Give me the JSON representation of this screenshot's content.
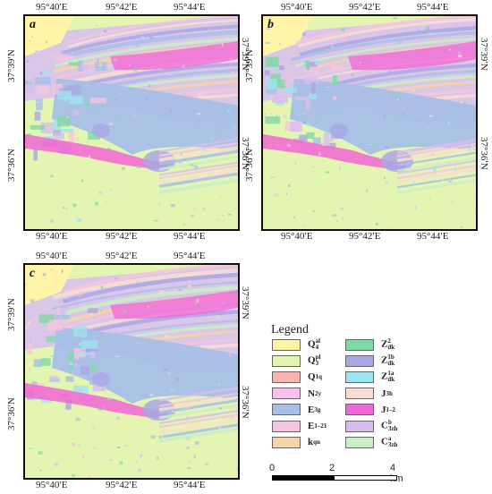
{
  "panels": [
    {
      "label": "a",
      "top_lons": [
        "95°40′E",
        "95°42′E",
        "95°44′E"
      ],
      "bottom_lons": [
        "95°40′E",
        "95°42′E",
        "95°44′E"
      ],
      "left_lats": [
        "37°39′N",
        "37°36′N"
      ],
      "right_lats": [
        "37°39′N",
        "37°36′N"
      ]
    },
    {
      "label": "b",
      "top_lons": [
        "95°40′E",
        "95°42′E",
        "95°44′E"
      ],
      "bottom_lons": [
        "95°40′E",
        "95°42′E",
        "95°44′E"
      ],
      "left_lats": [
        "37°39′N",
        "37°36′N"
      ],
      "right_lats": [
        "37°39′N",
        "37°36′N"
      ]
    },
    {
      "label": "c",
      "top_lons": [
        "95°40′E",
        "95°42′E",
        "95°44′E"
      ],
      "bottom_lons": [
        "95°40′E",
        "95°42′E",
        "95°44′E"
      ],
      "left_lats": [
        "37°39′N",
        "37°36′N"
      ],
      "right_lats": [
        "37°39′N",
        "37°36′N"
      ]
    }
  ],
  "legend": {
    "title": "Legend",
    "items": [
      {
        "base": "Q",
        "sup": "al",
        "sub": "4",
        "color": "#fff4a8"
      },
      {
        "base": "Q",
        "sup": "pl",
        "sub": "3",
        "color": "#e3f5b0"
      },
      {
        "base": "Q",
        "sup": "",
        "sub": "1q",
        "color": "#f7b5ad"
      },
      {
        "base": "N",
        "sup": "",
        "sub": "2y",
        "color": "#f9c0ee"
      },
      {
        "base": "E",
        "sup": "",
        "sub": "3g",
        "color": "#a7bfe6"
      },
      {
        "base": "E",
        "sup": "",
        "sub": "1–21",
        "color": "#f5c6df"
      },
      {
        "base": "k",
        "sup": "",
        "sub": "qn",
        "color": "#f8d3a6"
      },
      {
        "base": "Z",
        "sup": "2",
        "sub": "dk",
        "color": "#7fd9a4"
      },
      {
        "base": "Z",
        "sup": "1b",
        "sub": "dk",
        "color": "#a9a6e6"
      },
      {
        "base": "Z",
        "sup": "1a",
        "sub": "dk",
        "color": "#9ee3f0"
      },
      {
        "base": "J",
        "sup": "",
        "sub": "3h",
        "color": "#f8ded2"
      },
      {
        "base": "J",
        "sup": "",
        "sub": "1–2",
        "color": "#f266d6"
      },
      {
        "base": "C",
        "sup": "b",
        "sub": "3zh",
        "color": "#d8bdf0"
      },
      {
        "base": "C",
        "sup": "a",
        "sub": "3zh",
        "color": "#c8f0c4"
      }
    ]
  },
  "scale_bar": {
    "labels": [
      "0",
      "2",
      "4 km"
    ]
  }
}
